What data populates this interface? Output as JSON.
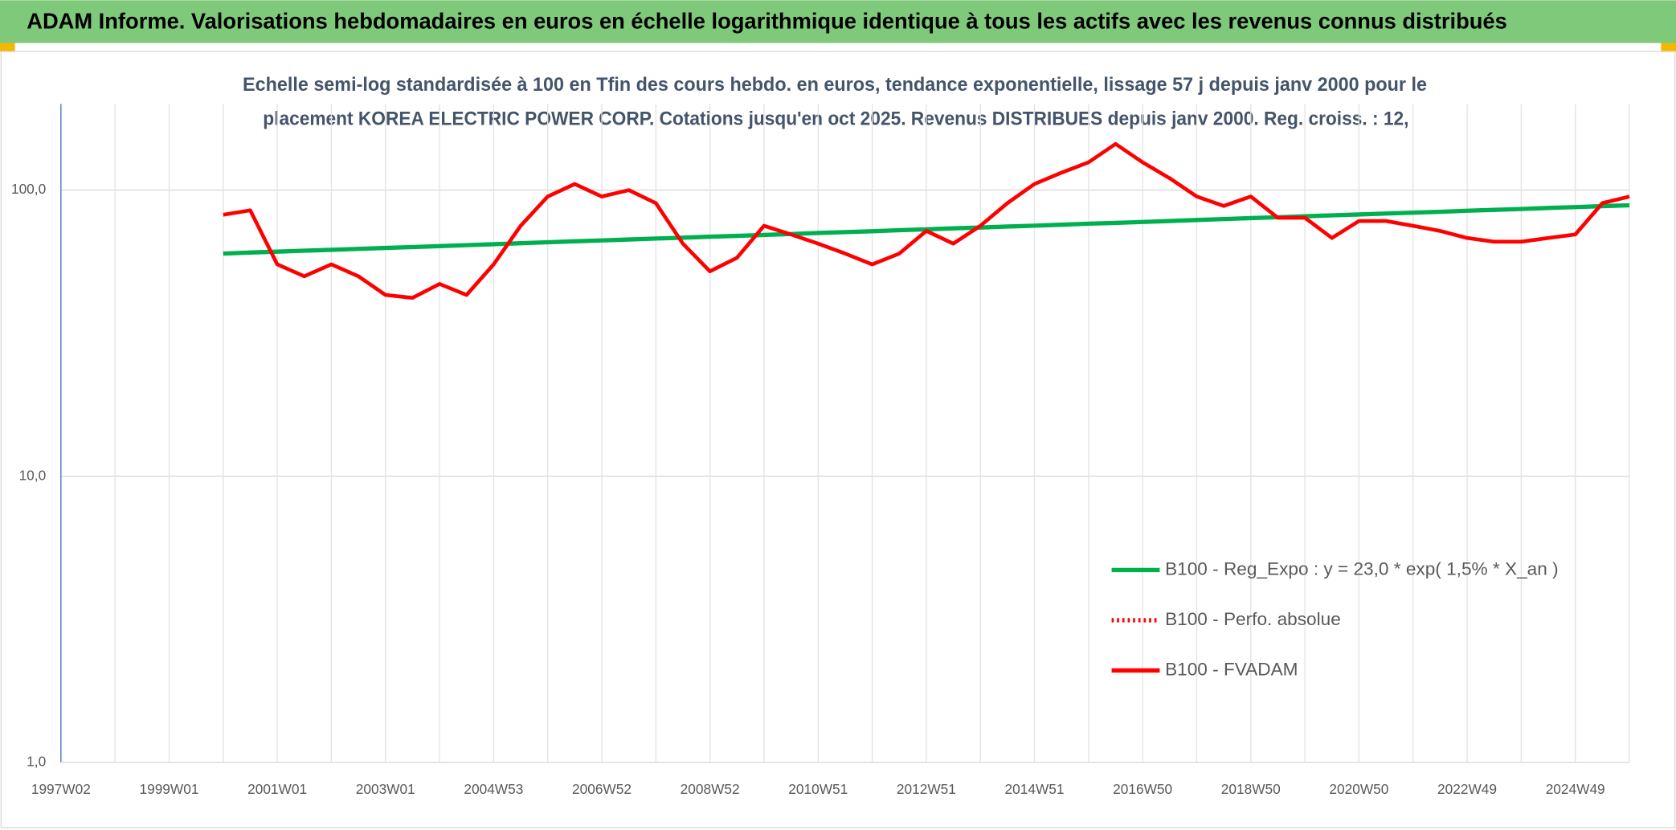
{
  "chart_data": {
    "type": "line",
    "title": "ADAM Informe. Valorisations hebdomadaires en euros en échelle logarithmique identique à tous les actifs avec les revenus connus distribués",
    "subtitle": [
      "Echelle semi-log standardisée à 100 en Tfin des cours hebdo. en euros, tendance exponentielle, lissage 57 j depuis janv 2000 pour le",
      "placement KOREA ELECTRIC POWER CORP. Cotations jusqu'en oct 2025. Revenus DISTRIBUES depuis janv 2000. Reg. croiss. : 12,"
    ],
    "categories": [
      "1997W02",
      null,
      null,
      null,
      "1999W01",
      null,
      null,
      null,
      "2001W01",
      null,
      null,
      null,
      "2003W01",
      null,
      null,
      null,
      "2004W53",
      null,
      null,
      null,
      "2006W52",
      null,
      null,
      null,
      "2008W52",
      null,
      null,
      null,
      "2010W51",
      null,
      null,
      null,
      "2012W51",
      null,
      null,
      null,
      "2014W51",
      null,
      null,
      null,
      "2016W50",
      null,
      null,
      null,
      "2018W50",
      null,
      null,
      null,
      "2020W50",
      null,
      null,
      null,
      "2022W49",
      null,
      null,
      null,
      "2024W49",
      null,
      null
    ],
    "series": [
      {
        "name": "B100 - Reg_Expo : y = 23,0 * exp( 1,5% *  X_an )",
        "color": "#00b050",
        "style": "solid",
        "values": [
          null,
          null,
          null,
          null,
          null,
          null,
          60.0,
          60.5,
          60.9,
          61.4,
          61.8,
          62.3,
          62.8,
          63.2,
          63.7,
          64.2,
          64.7,
          65.2,
          65.7,
          66.2,
          66.7,
          67.2,
          67.7,
          68.2,
          68.7,
          69.2,
          69.7,
          70.2,
          70.8,
          71.3,
          71.8,
          72.4,
          72.9,
          73.5,
          74.0,
          74.6,
          75.1,
          75.7,
          76.3,
          76.8,
          77.4,
          78.0,
          78.6,
          79.2,
          79.8,
          80.4,
          81.0,
          81.6,
          82.2,
          82.8,
          83.4,
          84.0,
          84.7,
          85.3,
          85.9,
          86.6,
          87.2,
          87.9,
          88.5
        ]
      },
      {
        "name": "B100 - Perfo. absolue",
        "color": "#ff0000",
        "style": "dotted",
        "values": [
          null,
          null,
          null,
          null,
          null,
          null,
          null,
          null,
          null,
          null,
          null,
          null,
          null,
          null,
          null,
          null,
          null,
          null,
          null,
          null,
          null,
          null,
          null,
          null,
          null,
          null,
          null,
          null,
          null,
          null,
          null,
          null,
          null,
          null,
          null,
          null,
          null,
          null,
          null,
          null,
          null,
          null,
          null,
          null,
          null,
          null,
          null,
          null,
          null,
          null,
          null,
          null,
          null,
          null,
          null,
          null,
          null,
          null,
          null
        ]
      },
      {
        "name": "B100 - FVADAM",
        "color": "#ff0000",
        "style": "solid",
        "values": [
          null,
          null,
          null,
          null,
          null,
          null,
          82,
          85,
          55,
          50,
          55,
          50,
          43,
          42,
          47,
          43,
          55,
          75,
          95,
          105,
          95,
          100,
          90,
          65,
          52,
          58,
          75,
          70,
          65,
          60,
          55,
          60,
          72,
          65,
          75,
          90,
          105,
          115,
          125,
          145,
          125,
          110,
          95,
          88,
          95,
          80,
          80,
          68,
          78,
          78,
          75,
          72,
          68,
          66,
          66,
          68,
          70,
          90,
          95
        ]
      }
    ],
    "log_scale": true,
    "ylim": [
      1,
      200
    ],
    "yticks": [
      {
        "value": 1,
        "label": "1,0"
      },
      {
        "value": 10,
        "label": "10,0"
      },
      {
        "value": 100,
        "label": "100,0"
      }
    ],
    "grid": true,
    "legend": "lower right"
  }
}
